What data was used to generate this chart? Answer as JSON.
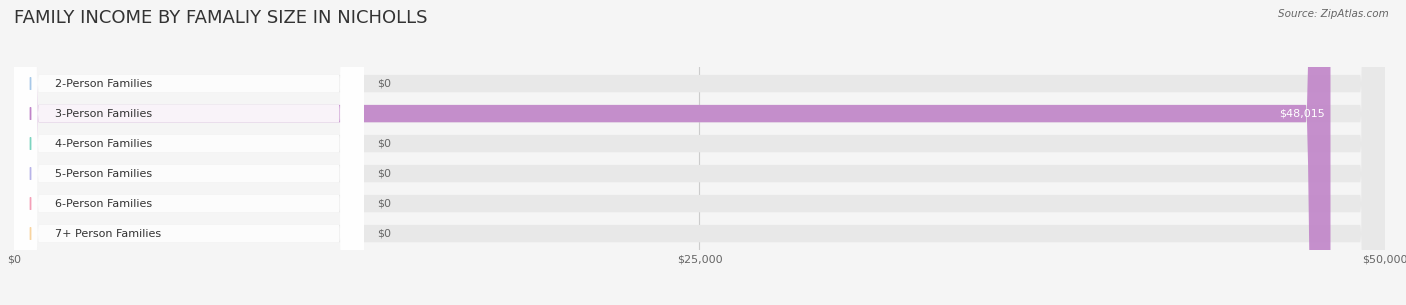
{
  "title": "FAMILY INCOME BY FAMALIY SIZE IN NICHOLLS",
  "source": "Source: ZipAtlas.com",
  "categories": [
    "2-Person Families",
    "3-Person Families",
    "4-Person Families",
    "5-Person Families",
    "6-Person Families",
    "7+ Person Families"
  ],
  "values": [
    0,
    48015,
    0,
    0,
    0,
    0
  ],
  "bar_colors": [
    "#a8c8e8",
    "#c084c8",
    "#7dd4c0",
    "#b8b4e8",
    "#f4a0b8",
    "#f8d4a0"
  ],
  "xlim": [
    0,
    50000
  ],
  "xticks": [
    0,
    25000,
    50000
  ],
  "xtick_labels": [
    "$0",
    "$25,000",
    "$50,000"
  ],
  "background_color": "#f5f5f5",
  "bar_bg_color": "#e8e8e8",
  "title_fontsize": 13,
  "annotation_color_default": "#666666",
  "annotation_color_bar": "#ffffff",
  "bar_height": 0.58,
  "figsize": [
    14.06,
    3.05
  ],
  "dpi": 100
}
